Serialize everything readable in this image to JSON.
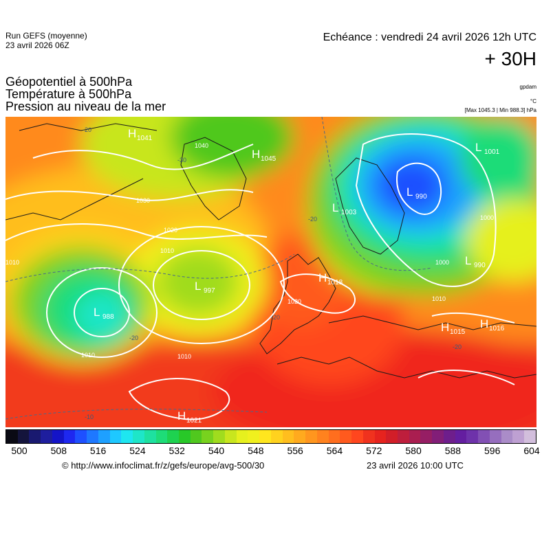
{
  "header": {
    "run_line1": "Run GEFS (moyenne)",
    "run_line2": "23 avril 2026 06Z",
    "echeance": "Echéance : vendredi 24 avril 2026 12h UTC",
    "lead": "+ 30H"
  },
  "parameters": {
    "geopotential": "Géopotentiel à 500hPa",
    "temperature": "Température à 500hPa",
    "pressure": "Pression au niveau de la mer"
  },
  "units": {
    "geopotential": "gpdam",
    "temperature": "°C",
    "pressure": "[Max 1045.3 | Min 988.3] hPa"
  },
  "pressure_centers": [
    {
      "type": "H",
      "value": "1041"
    },
    {
      "type": "H",
      "value": "1045"
    },
    {
      "type": "L",
      "value": "1003"
    },
    {
      "type": "L",
      "value": "990"
    },
    {
      "type": "L",
      "value": "1001"
    },
    {
      "type": "L",
      "value": "990"
    },
    {
      "type": "H",
      "value": "1018"
    },
    {
      "type": "L",
      "value": "997"
    },
    {
      "type": "L",
      "value": "988"
    },
    {
      "type": "H",
      "value": "1015"
    },
    {
      "type": "H",
      "value": "1016"
    },
    {
      "type": "H",
      "value": "1021"
    }
  ],
  "isobar_labels": [
    "1040",
    "1030",
    "1020",
    "1010",
    "1010",
    "1010",
    "1010",
    "1020",
    "1000",
    "1010",
    "1000"
  ],
  "temperature_labels": [
    "-20",
    "-30",
    "-20",
    "-20",
    "-20",
    "-20",
    "-10"
  ],
  "colorbar": {
    "ticks": [
      "500",
      "508",
      "516",
      "524",
      "532",
      "540",
      "548",
      "556",
      "564",
      "572",
      "580",
      "588",
      "596",
      "604"
    ],
    "colors": [
      "#0a0a14",
      "#14143c",
      "#191970",
      "#1e1e9e",
      "#1414c8",
      "#1e28f0",
      "#1e50ff",
      "#1e78ff",
      "#1ea0ff",
      "#1ec8ff",
      "#1ee6f0",
      "#1ee6c8",
      "#1ee1a0",
      "#1edc78",
      "#1ed250",
      "#28c828",
      "#50c81e",
      "#78d21e",
      "#a0dc1e",
      "#c8e61e",
      "#e6f01e",
      "#f0f01e",
      "#ffe61e",
      "#ffd21e",
      "#ffbe1e",
      "#ffaa1e",
      "#ff961e",
      "#ff821e",
      "#ff6e1e",
      "#ff5a1e",
      "#ff461e",
      "#f0321e",
      "#e6231e",
      "#d21e28",
      "#be1e3c",
      "#aa1e50",
      "#961e64",
      "#821e78",
      "#6e1e8c",
      "#641ea0",
      "#6e32aa",
      "#8250b4",
      "#966ebe",
      "#aa8cc8",
      "#bea0d2",
      "#d2bedc"
    ]
  },
  "footer": {
    "url": "© http://www.infoclimat.fr/z/gefs/europe/avg-500/30",
    "timestamp": "23 avril 2026 10:00 UTC"
  }
}
